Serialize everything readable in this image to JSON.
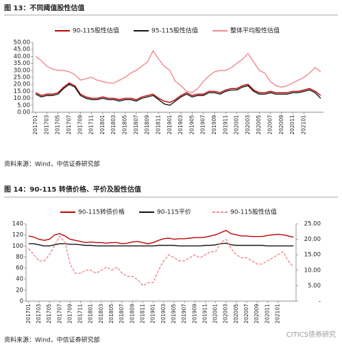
{
  "chart_data": [
    {
      "type": "line",
      "title": "图 13：不同阈值股性估值",
      "source": "资料来源：Wind，中信证券研究部",
      "categories": [
        "201701",
        null,
        "201703",
        null,
        "201705",
        null,
        "201707",
        null,
        "201709",
        null,
        "201711",
        null,
        "201801",
        null,
        "201803",
        null,
        "201805",
        null,
        "201807",
        null,
        "201809",
        null,
        "201811",
        null,
        "201901",
        null,
        "201903",
        null,
        "201905",
        null,
        "201907",
        null,
        "201909",
        null,
        "201911",
        null,
        "202001",
        null,
        "202003",
        null,
        "202005",
        null,
        "202007",
        null,
        "202009",
        null,
        "202011",
        null,
        "202101",
        null,
        null,
        null
      ],
      "ylim": [
        0,
        50
      ],
      "yticks": [
        {
          "value": 0,
          "label": "0.00"
        },
        {
          "value": 5,
          "label": "5.00"
        },
        {
          "value": 10,
          "label": "10.00"
        },
        {
          "value": 15,
          "label": "15.00"
        },
        {
          "value": 20,
          "label": "20.00"
        },
        {
          "value": 25,
          "label": "25.00"
        },
        {
          "value": 30,
          "label": "30.00"
        },
        {
          "value": 35,
          "label": "35.00"
        },
        {
          "value": 40,
          "label": "40.00"
        },
        {
          "value": 45,
          "label": "45.00"
        },
        {
          "value": 50,
          "label": "50.00"
        }
      ],
      "series": [
        {
          "name": "90-115股性估值",
          "color": "#c00000",
          "values": [
            14,
            12,
            13,
            13,
            14,
            18,
            21,
            19,
            13,
            11,
            10,
            10,
            11,
            10,
            10,
            9,
            10,
            10,
            9,
            11,
            12,
            13,
            10,
            8,
            7,
            9,
            12,
            14,
            12,
            13,
            13,
            15,
            15,
            14,
            16,
            17,
            17,
            19,
            20,
            16,
            14,
            14,
            15,
            14,
            14,
            14,
            15,
            15,
            16,
            17,
            15,
            12
          ]
        },
        {
          "name": "95-115股性估值",
          "color": "#111111",
          "values": [
            13,
            11,
            12,
            12,
            13,
            17,
            20,
            18,
            12,
            10,
            9,
            9,
            10,
            9,
            9,
            8,
            9,
            9,
            8,
            10,
            11,
            12,
            9,
            6,
            5,
            8,
            11,
            13,
            11,
            12,
            12,
            14,
            14,
            13,
            15,
            16,
            16,
            18,
            19,
            15,
            13,
            13,
            14,
            13,
            13,
            13,
            14,
            14,
            15,
            16,
            14,
            10
          ]
        },
        {
          "name": "整体平均股性估值",
          "color": "#f4868c",
          "values": [
            40,
            37,
            33,
            31,
            30,
            30,
            29,
            27,
            23,
            24,
            25,
            23,
            22,
            21,
            21,
            23,
            25,
            28,
            30,
            33,
            36,
            44,
            38,
            33,
            30,
            22,
            19,
            15,
            14,
            17,
            22,
            26,
            29,
            30,
            30,
            32,
            35,
            38,
            42,
            36,
            30,
            28,
            22,
            19,
            18,
            19,
            21,
            23,
            25,
            28,
            32,
            29
          ]
        }
      ]
    },
    {
      "type": "line",
      "title": "图 14：90-115 转债价格、平价及股性估值",
      "source": "资料来源：Wind，中信证券研究部",
      "watermark": "CITICS债券研究",
      "categories": [
        "201701",
        null,
        "201703",
        null,
        "201705",
        null,
        "201707",
        null,
        "201709",
        null,
        "201711",
        null,
        "201801",
        null,
        "201803",
        null,
        "201805",
        null,
        "201807",
        null,
        "201809",
        null,
        "201811",
        null,
        "201901",
        null,
        "201903",
        null,
        "201905",
        null,
        "201907",
        null,
        "201909",
        null,
        "201911",
        null,
        "202001",
        null,
        "202003",
        null,
        "202005",
        null,
        "202007",
        null,
        "202009",
        null,
        "202011",
        null,
        "202101",
        null,
        null,
        null
      ],
      "ylim": [
        0,
        140
      ],
      "yticks": [
        0,
        20,
        40,
        60,
        80,
        100,
        120,
        140
      ],
      "y2lim": [
        0,
        25
      ],
      "y2ticks": [
        {
          "value": 0,
          "label": "-"
        },
        {
          "value": 5,
          "label": "5.00"
        },
        {
          "value": 10,
          "label": "10.00"
        },
        {
          "value": 15,
          "label": "15.00"
        },
        {
          "value": 20,
          "label": "20.00"
        },
        {
          "value": 25,
          "label": "25.00"
        }
      ],
      "series": [
        {
          "name": "90-115转债价格",
          "color": "#c00000",
          "values": [
            118,
            116,
            112,
            110,
            112,
            120,
            122,
            118,
            112,
            110,
            108,
            106,
            107,
            106,
            106,
            105,
            106,
            106,
            104,
            105,
            107,
            108,
            106,
            104,
            106,
            110,
            113,
            114,
            112,
            113,
            113,
            114,
            115,
            115,
            116,
            118,
            120,
            124,
            128,
            122,
            120,
            118,
            118,
            117,
            117,
            117,
            119,
            120,
            121,
            120,
            118,
            116
          ]
        },
        {
          "name": "90-115平价",
          "color": "#111111",
          "values": [
            104,
            104,
            102,
            100,
            100,
            102,
            104,
            104,
            103,
            103,
            102,
            101,
            101,
            100,
            100,
            100,
            100,
            100,
            100,
            100,
            100,
            100,
            100,
            100,
            100,
            101,
            101,
            101,
            101,
            100,
            100,
            100,
            100,
            100,
            101,
            101,
            102,
            104,
            105,
            102,
            101,
            101,
            101,
            101,
            101,
            101,
            100,
            100,
            100,
            100,
            100,
            100
          ]
        },
        {
          "name": "90-115股性估值",
          "color": "#f4868c",
          "dashed": true,
          "axis": "y2",
          "values": [
            17,
            15,
            13,
            13,
            15,
            18,
            21,
            19,
            12,
            9,
            9,
            10,
            10,
            9,
            10,
            11,
            10,
            11,
            9,
            8,
            8,
            7,
            5,
            6,
            6,
            10,
            13,
            15,
            14,
            13,
            13,
            14,
            15,
            14,
            15,
            16,
            16,
            19,
            20,
            17,
            15,
            14,
            14,
            13,
            12,
            12,
            13,
            14,
            15,
            16,
            13,
            11
          ]
        }
      ]
    }
  ]
}
